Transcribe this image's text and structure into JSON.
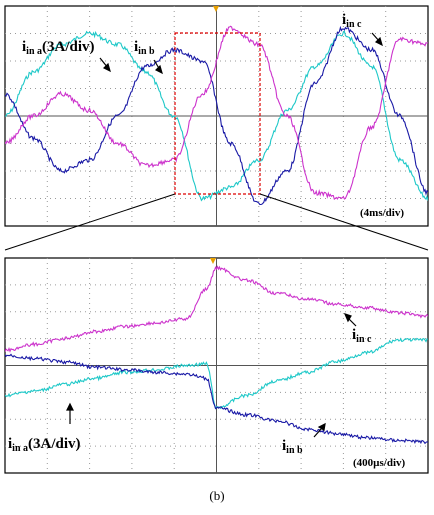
{
  "caption": "(b)",
  "colors": {
    "phase_a": "#1ec8c8",
    "phase_b": "#1a1aa6",
    "phase_c": "#cc33cc",
    "grid": "#9a9a9a",
    "axis": "#555555",
    "zoom_box": "#dd0000",
    "trigger": "#e8a000"
  },
  "chart_data": [
    {
      "type": "line",
      "panel": "top",
      "time_scale": "(4ms/div)",
      "divisions_x": 10,
      "divisions_y": 8,
      "labels": {
        "a": {
          "main": "i",
          "sub": "in a",
          "suffix": "(3A/div)"
        },
        "b": {
          "main": "i",
          "sub": "in b"
        },
        "c": {
          "main": "i",
          "sub": "in c"
        }
      },
      "series": [
        {
          "name": "i in a",
          "values": [
            0.0,
            0.8,
            1.3,
            1.5,
            1.3,
            0.8,
            0.0,
            -1.5,
            -1.3,
            -0.8,
            0.1,
            0.9,
            1.5,
            0.9,
            -0.8,
            -1.5
          ],
          "x": [
            0,
            1.4,
            2.8,
            4.2,
            5.6,
            7.0,
            8.4,
            9.8,
            11.2,
            12.6,
            14.0,
            15.4,
            16.8,
            18.2,
            19.6,
            21.0
          ]
        },
        {
          "name": "i in b",
          "values": [
            0.4,
            -0.4,
            -1.0,
            -0.8,
            0.0,
            0.9,
            1.2,
            1.0,
            -0.5,
            -1.6,
            -1.0,
            0.6,
            1.6,
            1.2,
            0.0,
            -1.4
          ],
          "x": [
            0,
            1.4,
            2.8,
            4.2,
            5.6,
            7.0,
            8.4,
            9.8,
            11.2,
            12.6,
            14.0,
            15.4,
            16.8,
            18.2,
            19.6,
            21.0
          ]
        },
        {
          "name": "i in c",
          "values": [
            -0.5,
            0.0,
            0.4,
            0.1,
            -0.5,
            -0.9,
            -0.8,
            0.4,
            1.6,
            1.3,
            0.0,
            -1.4,
            -1.5,
            -0.2,
            1.4,
            1.3
          ],
          "x": [
            0,
            1.4,
            2.8,
            4.2,
            5.6,
            7.0,
            8.4,
            9.8,
            11.2,
            12.6,
            14.0,
            15.4,
            16.8,
            18.2,
            19.6,
            21.0
          ]
        }
      ]
    },
    {
      "type": "line",
      "panel": "bottom",
      "time_scale": "(400µs/div)",
      "divisions_x": 10,
      "divisions_y": 8,
      "labels": {
        "a": {
          "main": "i",
          "sub": "in a",
          "suffix": "(3A/div)"
        },
        "b": {
          "main": "i",
          "sub": "in b"
        },
        "c": {
          "main": "i",
          "sub": "in c"
        }
      },
      "series": [
        {
          "name": "i in a",
          "values": [
            -0.35,
            -0.3,
            -0.22,
            -0.15,
            -0.08,
            -0.05,
            0.0,
            0.02,
            -0.5,
            -0.35,
            -0.18,
            -0.08,
            0.05,
            0.15,
            0.3,
            0.3
          ],
          "x": [
            0,
            0.3,
            0.6,
            0.9,
            1.2,
            1.5,
            1.8,
            2.0,
            2.1,
            2.4,
            2.7,
            3.0,
            3.3,
            3.6,
            3.9,
            4.2
          ]
        },
        {
          "name": "i in b",
          "values": [
            0.12,
            0.08,
            0.04,
            -0.02,
            -0.05,
            -0.08,
            -0.1,
            -0.15,
            -0.5,
            -0.58,
            -0.65,
            -0.75,
            -0.8,
            -0.85,
            -0.88,
            -0.9
          ],
          "x": [
            0,
            0.3,
            0.6,
            0.9,
            1.2,
            1.5,
            1.8,
            2.0,
            2.1,
            2.4,
            2.7,
            3.0,
            3.3,
            3.6,
            3.9,
            4.2
          ]
        },
        {
          "name": "i in c",
          "values": [
            0.18,
            0.25,
            0.32,
            0.4,
            0.46,
            0.5,
            0.55,
            0.9,
            1.15,
            1.0,
            0.85,
            0.78,
            0.72,
            0.68,
            0.62,
            0.58
          ],
          "x": [
            0,
            0.3,
            0.6,
            0.9,
            1.2,
            1.5,
            1.8,
            2.0,
            2.1,
            2.4,
            2.7,
            3.0,
            3.3,
            3.6,
            3.9,
            4.2
          ]
        }
      ]
    }
  ]
}
